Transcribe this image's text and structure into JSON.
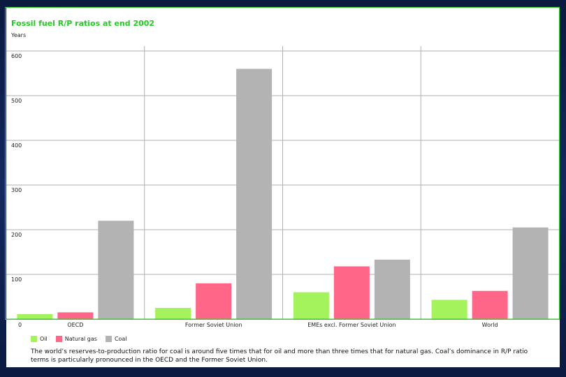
{
  "colors": {
    "oil": "#a4f25c",
    "gas": "#ff6688",
    "coal": "#b3b3b3",
    "accent": "#22cc22"
  },
  "chart_data": {
    "type": "bar",
    "title": "Fossil fuel R/P ratios at end 2002",
    "ylabel": "Years",
    "ylim": [
      0,
      600
    ],
    "yticks": [
      0,
      100,
      200,
      300,
      400,
      500,
      600
    ],
    "grid": true,
    "legend_position": "bottom-left",
    "categories": [
      "OECD",
      "Former Soviet Union",
      "EMEs excl. Former Soviet Union",
      "World"
    ],
    "series": [
      {
        "name": "Oil",
        "color": "#a4f25c",
        "values": [
          11,
          25,
          60,
          43
        ]
      },
      {
        "name": "Natural gas",
        "color": "#ff6688",
        "values": [
          15,
          80,
          118,
          63
        ]
      },
      {
        "name": "Coal",
        "color": "#b3b3b3",
        "values": [
          220,
          560,
          133,
          205
        ]
      }
    ]
  },
  "caption": "The world’s reserves-to-production ratio for coal is around five times that for oil and more than three times that for natural gas. Coal’s dominance in R/P ratio terms is particularly pronounced in the OECD and the Former Soviet Union."
}
